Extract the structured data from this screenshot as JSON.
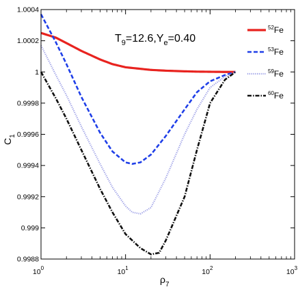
{
  "chart_data": {
    "type": "line",
    "annotation": {
      "t_main": "T",
      "t_sub": "9",
      "mid": "=12.6,Y",
      "y_sub": "e",
      "tail": "=0.40"
    },
    "xlabel": {
      "main": "ρ",
      "sub": "7"
    },
    "ylabel": {
      "main": "C",
      "sub": "1"
    },
    "xscale": "log",
    "xlim": [
      1,
      1000
    ],
    "ylim": [
      0.9988,
      1.0004
    ],
    "x_ticks": [
      {
        "value": 1,
        "base": "10",
        "exp": "0"
      },
      {
        "value": 10,
        "base": "10",
        "exp": "1"
      },
      {
        "value": 100,
        "base": "10",
        "exp": "2"
      },
      {
        "value": 1000,
        "base": "10",
        "exp": "3"
      }
    ],
    "y_ticks": [
      {
        "value": 0.9988,
        "label": "0.9988"
      },
      {
        "value": 0.999,
        "label": "0.999"
      },
      {
        "value": 0.9992,
        "label": "0.9992"
      },
      {
        "value": 0.9994,
        "label": "0.9994"
      },
      {
        "value": 0.9996,
        "label": "0.9996"
      },
      {
        "value": 0.9998,
        "label": "0.9998"
      },
      {
        "value": 1.0,
        "label": "1"
      },
      {
        "value": 1.0002,
        "label": "1.0002"
      },
      {
        "value": 1.0004,
        "label": "1.0004"
      }
    ],
    "legend_position": "top-right",
    "grid": false,
    "series": [
      {
        "name_sup": "52",
        "name_main": "Fe",
        "color": "#e8231f",
        "style": "solid",
        "x": [
          1,
          1.5,
          2,
          3,
          5,
          7,
          10,
          15,
          20,
          30,
          50,
          70,
          100,
          150,
          200
        ],
        "y": [
          1.00025,
          1.00022,
          1.000185,
          1.000135,
          1.00008,
          1.00005,
          1.00003,
          1.00002,
          1.000013,
          1.000008,
          1.000004,
          1.000002,
          1.000001,
          1.0,
          1.0
        ]
      },
      {
        "name_sup": "53",
        "name_main": "Fe",
        "color": "#1f3fe8",
        "style": "dashed",
        "x": [
          1,
          1.5,
          2,
          3,
          5,
          7,
          10,
          12,
          15,
          20,
          30,
          50,
          70,
          100,
          150,
          200
        ],
        "y": [
          1.00037,
          1.00019,
          1.00005,
          0.99984,
          0.99961,
          0.99949,
          0.99942,
          0.99941,
          0.99942,
          0.99947,
          0.99959,
          0.99976,
          0.99987,
          0.99994,
          0.99998,
          1.0
        ]
      },
      {
        "name_sup": "59",
        "name_main": "Fe",
        "color": "#9b9ee6",
        "style": "dotted",
        "x": [
          1,
          1.5,
          2,
          3,
          5,
          7,
          10,
          12,
          15,
          20,
          30,
          50,
          70,
          100,
          150,
          200
        ],
        "y": [
          1.00017,
          0.99998,
          0.99985,
          0.99965,
          0.99941,
          0.99926,
          0.99914,
          0.9991,
          0.99909,
          0.99913,
          0.99932,
          0.9996,
          0.99976,
          0.9999,
          0.99997,
          1.0
        ]
      },
      {
        "name_sup": "60",
        "name_main": "Fe",
        "color": "#111111",
        "style": "dashdot",
        "x": [
          1,
          1.5,
          2,
          3,
          5,
          7,
          10,
          15,
          20,
          25,
          30,
          50,
          70,
          100,
          150,
          200
        ],
        "y": [
          1.0,
          0.99983,
          0.9997,
          0.9995,
          0.99925,
          0.9991,
          0.99896,
          0.99887,
          0.99883,
          0.99884,
          0.99892,
          0.9992,
          0.9995,
          0.9998,
          0.99995,
          1.0
        ]
      }
    ]
  }
}
